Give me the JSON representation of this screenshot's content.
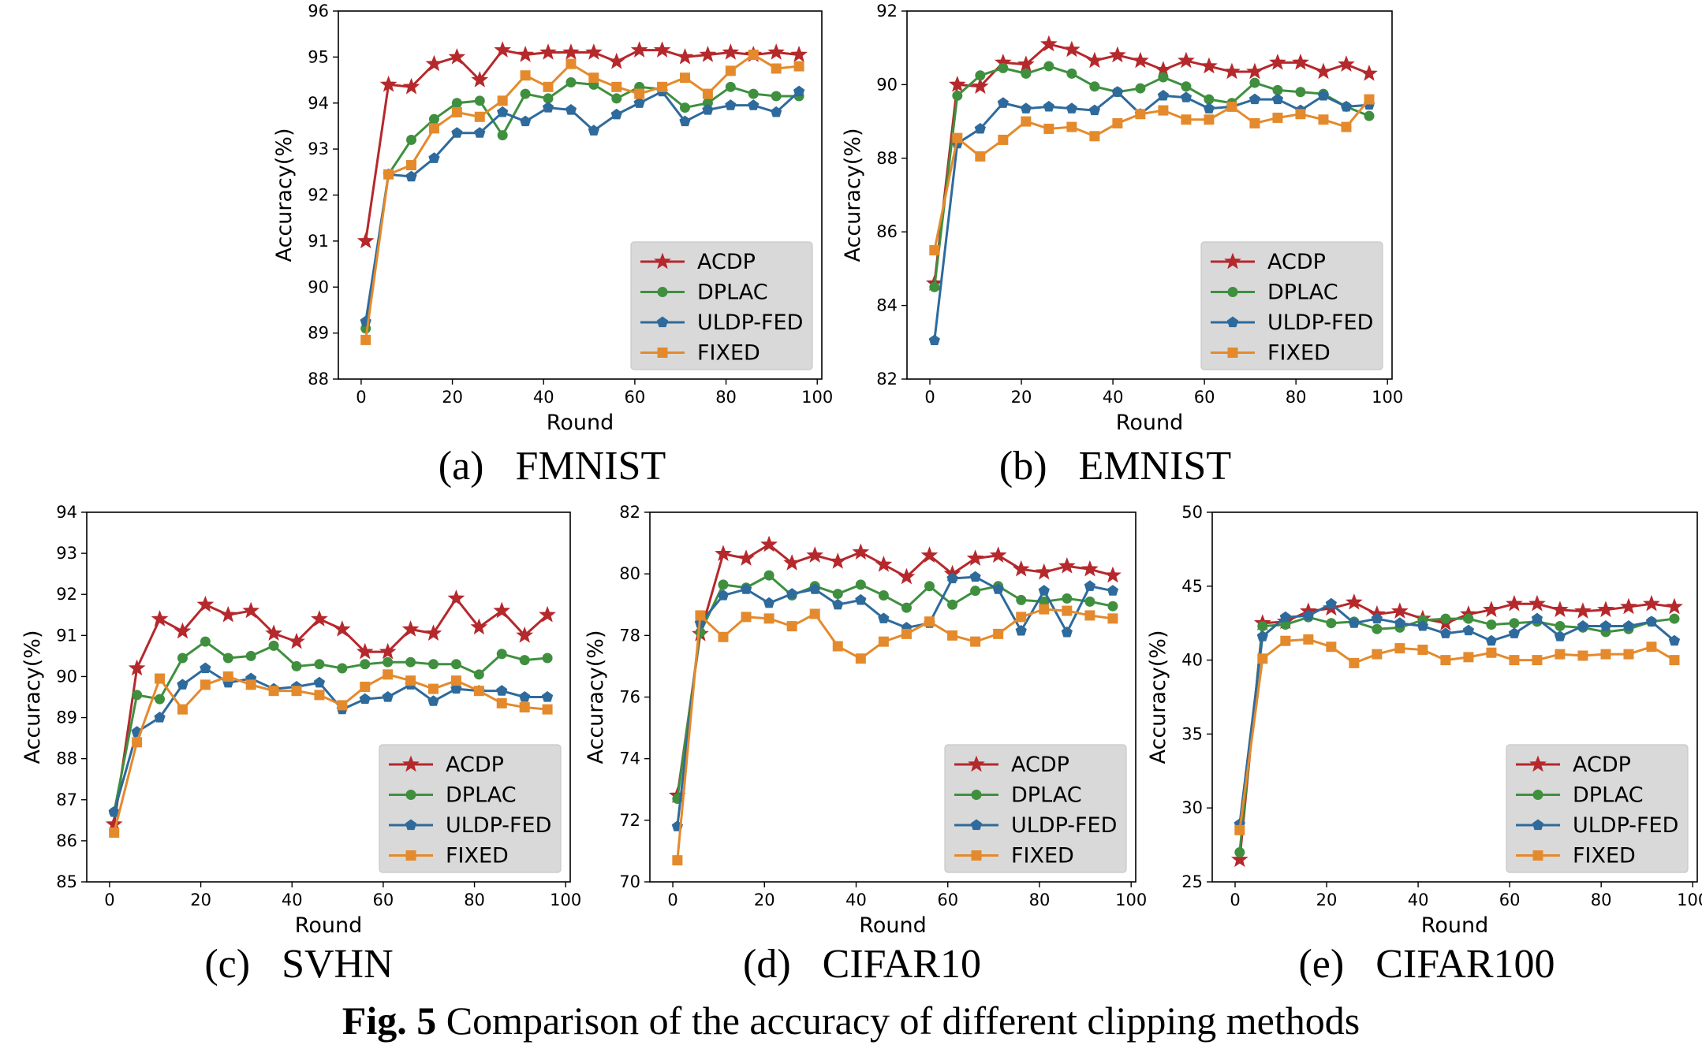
{
  "figure_caption": {
    "label": "Fig. 5",
    "text": " Comparison of the accuracy of different clipping methods"
  },
  "colors": {
    "ACDP": "#b5282c",
    "DPLAC": "#3f8f3f",
    "ULDP-FED": "#2e6a9c",
    "FIXED": "#e48a2c"
  },
  "markers": {
    "ACDP": "star",
    "DPLAC": "circle",
    "ULDP-FED": "pentagon",
    "FIXED": "square"
  },
  "chart_data": [
    {
      "type": "line",
      "panel_label": "(a)",
      "dataset": "FMNIST",
      "xlabel": "Round",
      "ylabel": "Accuracy(%)",
      "xlim": [
        -5,
        101
      ],
      "ylim": [
        88,
        96
      ],
      "xticks": [
        0,
        20,
        40,
        60,
        80,
        100
      ],
      "yticks": [
        88,
        89,
        90,
        91,
        92,
        93,
        94,
        95,
        96
      ],
      "legend": [
        "ACDP",
        "DPLAC",
        "ULDP-FED",
        "FIXED"
      ],
      "legend_position": "lower-right",
      "grid": false,
      "x": [
        1,
        6,
        11,
        16,
        21,
        26,
        31,
        36,
        41,
        46,
        51,
        56,
        61,
        66,
        71,
        76,
        81,
        86,
        91,
        96
      ],
      "series": [
        {
          "name": "ACDP",
          "values": [
            91.0,
            94.4,
            94.35,
            94.85,
            95.0,
            94.5,
            95.15,
            95.05,
            95.1,
            95.1,
            95.1,
            94.9,
            95.15,
            95.15,
            95.0,
            95.05,
            95.1,
            95.05,
            95.1,
            95.05
          ]
        },
        {
          "name": "DPLAC",
          "values": [
            89.1,
            92.45,
            93.2,
            93.65,
            94.0,
            94.05,
            93.3,
            94.2,
            94.1,
            94.45,
            94.4,
            94.1,
            94.35,
            94.3,
            93.9,
            94.0,
            94.35,
            94.2,
            94.15,
            94.15
          ]
        },
        {
          "name": "ULDP-FED",
          "values": [
            89.25,
            92.45,
            92.4,
            92.8,
            93.35,
            93.35,
            93.8,
            93.6,
            93.9,
            93.85,
            93.4,
            93.75,
            94.0,
            94.25,
            93.6,
            93.85,
            93.95,
            93.95,
            93.8,
            94.25
          ]
        },
        {
          "name": "FIXED",
          "values": [
            88.85,
            92.45,
            92.65,
            93.45,
            93.8,
            93.7,
            94.05,
            94.6,
            94.35,
            94.85,
            94.55,
            94.35,
            94.2,
            94.35,
            94.55,
            94.2,
            94.7,
            95.05,
            94.75,
            94.8
          ]
        }
      ]
    },
    {
      "type": "line",
      "panel_label": "(b)",
      "dataset": "EMNIST",
      "xlabel": "Round",
      "ylabel": "Accuracy(%)",
      "xlim": [
        -5,
        101
      ],
      "ylim": [
        82,
        92
      ],
      "xticks": [
        0,
        20,
        40,
        60,
        80,
        100
      ],
      "yticks": [
        82,
        84,
        86,
        88,
        90,
        92
      ],
      "legend": [
        "ACDP",
        "DPLAC",
        "ULDP-FED",
        "FIXED"
      ],
      "legend_position": "lower-right",
      "grid": false,
      "x": [
        1,
        6,
        11,
        16,
        21,
        26,
        31,
        36,
        41,
        46,
        51,
        56,
        61,
        66,
        71,
        76,
        81,
        86,
        91,
        96
      ],
      "series": [
        {
          "name": "ACDP",
          "values": [
            84.6,
            90.0,
            89.95,
            90.6,
            90.55,
            91.1,
            90.95,
            90.65,
            90.8,
            90.65,
            90.4,
            90.65,
            90.5,
            90.35,
            90.35,
            90.6,
            90.6,
            90.35,
            90.55,
            90.3
          ]
        },
        {
          "name": "DPLAC",
          "values": [
            84.5,
            89.7,
            90.25,
            90.45,
            90.3,
            90.5,
            90.3,
            89.95,
            89.8,
            89.9,
            90.2,
            89.95,
            89.6,
            89.5,
            90.05,
            89.85,
            89.8,
            89.75,
            89.4,
            89.15
          ]
        },
        {
          "name": "ULDP-FED",
          "values": [
            83.05,
            88.4,
            88.8,
            89.5,
            89.35,
            89.4,
            89.35,
            89.3,
            89.8,
            89.2,
            89.7,
            89.65,
            89.35,
            89.4,
            89.6,
            89.6,
            89.3,
            89.7,
            89.4,
            89.45
          ]
        },
        {
          "name": "FIXED",
          "values": [
            85.5,
            88.55,
            88.05,
            88.5,
            89.0,
            88.8,
            88.85,
            88.6,
            88.95,
            89.2,
            89.3,
            89.05,
            89.05,
            89.4,
            88.95,
            89.1,
            89.2,
            89.05,
            88.85,
            89.6
          ]
        }
      ]
    },
    {
      "type": "line",
      "panel_label": "(c)",
      "dataset": "SVHN",
      "xlabel": "Round",
      "ylabel": "Accuracy(%)",
      "xlim": [
        -5,
        101
      ],
      "ylim": [
        85,
        94
      ],
      "xticks": [
        0,
        20,
        40,
        60,
        80,
        100
      ],
      "yticks": [
        85,
        86,
        87,
        88,
        89,
        90,
        91,
        92,
        93,
        94
      ],
      "legend": [
        "ACDP",
        "DPLAC",
        "ULDP-FED",
        "FIXED"
      ],
      "legend_position": "lower-right",
      "grid": false,
      "x": [
        1,
        6,
        11,
        16,
        21,
        26,
        31,
        36,
        41,
        46,
        51,
        56,
        61,
        66,
        71,
        76,
        81,
        86,
        91,
        96
      ],
      "series": [
        {
          "name": "ACDP",
          "values": [
            86.4,
            90.2,
            91.4,
            91.1,
            91.75,
            91.5,
            91.6,
            91.05,
            90.85,
            91.4,
            91.15,
            90.6,
            90.6,
            91.15,
            91.05,
            91.9,
            91.2,
            91.6,
            91.0,
            91.5
          ]
        },
        {
          "name": "DPLAC",
          "values": [
            86.7,
            89.55,
            89.45,
            90.45,
            90.85,
            90.45,
            90.5,
            90.75,
            90.25,
            90.3,
            90.2,
            90.3,
            90.35,
            90.35,
            90.3,
            90.3,
            90.05,
            90.55,
            90.4,
            90.45
          ]
        },
        {
          "name": "ULDP-FED",
          "values": [
            86.7,
            88.65,
            89.0,
            89.8,
            90.2,
            89.85,
            89.95,
            89.7,
            89.75,
            89.85,
            89.2,
            89.45,
            89.5,
            89.8,
            89.4,
            89.7,
            89.65,
            89.65,
            89.5,
            89.5
          ]
        },
        {
          "name": "FIXED",
          "values": [
            86.2,
            88.4,
            89.95,
            89.2,
            89.8,
            90.0,
            89.8,
            89.65,
            89.65,
            89.55,
            89.3,
            89.75,
            90.05,
            89.9,
            89.7,
            89.9,
            89.65,
            89.35,
            89.25,
            89.2
          ]
        }
      ]
    },
    {
      "type": "line",
      "panel_label": "(d)",
      "dataset": "CIFAR10",
      "xlabel": "Round",
      "ylabel": "Accuracy(%)",
      "xlim": [
        -5,
        101
      ],
      "ylim": [
        70,
        82
      ],
      "xticks": [
        0,
        20,
        40,
        60,
        80,
        100
      ],
      "yticks": [
        70,
        72,
        74,
        76,
        78,
        80,
        82
      ],
      "legend": [
        "ACDP",
        "DPLAC",
        "ULDP-FED",
        "FIXED"
      ],
      "legend_position": "lower-right",
      "grid": false,
      "x": [
        1,
        6,
        11,
        16,
        21,
        26,
        31,
        36,
        41,
        46,
        51,
        56,
        61,
        66,
        71,
        76,
        81,
        86,
        91,
        96
      ],
      "series": [
        {
          "name": "ACDP",
          "values": [
            72.8,
            78.05,
            80.65,
            80.5,
            80.95,
            80.35,
            80.6,
            80.4,
            80.7,
            80.3,
            79.9,
            80.6,
            80.0,
            80.5,
            80.6,
            80.15,
            80.05,
            80.25,
            80.15,
            79.95
          ]
        },
        {
          "name": "DPLAC",
          "values": [
            72.7,
            78.1,
            79.65,
            79.55,
            79.95,
            79.3,
            79.6,
            79.35,
            79.65,
            79.3,
            78.9,
            79.6,
            79.0,
            79.45,
            79.6,
            79.15,
            79.1,
            79.2,
            79.1,
            78.95
          ]
        },
        {
          "name": "ULDP-FED",
          "values": [
            71.8,
            78.4,
            79.3,
            79.5,
            79.05,
            79.35,
            79.5,
            79.0,
            79.15,
            78.55,
            78.25,
            78.4,
            79.85,
            79.9,
            79.5,
            78.15,
            79.45,
            78.1,
            79.6,
            79.45
          ]
        },
        {
          "name": "FIXED",
          "values": [
            70.7,
            78.65,
            77.95,
            78.6,
            78.55,
            78.3,
            78.7,
            77.65,
            77.25,
            77.8,
            78.05,
            78.45,
            78.0,
            77.8,
            78.05,
            78.6,
            78.85,
            78.8,
            78.65,
            78.55
          ]
        }
      ]
    },
    {
      "type": "line",
      "panel_label": "(e)",
      "dataset": "CIFAR100",
      "xlabel": "Round",
      "ylabel": "Accuracy(%)",
      "xlim": [
        -5,
        101
      ],
      "ylim": [
        25,
        50
      ],
      "xticks": [
        0,
        20,
        40,
        60,
        80,
        100
      ],
      "yticks": [
        25,
        30,
        35,
        40,
        45,
        50
      ],
      "legend": [
        "ACDP",
        "DPLAC",
        "ULDP-FED",
        "FIXED"
      ],
      "legend_position": "lower-right",
      "grid": false,
      "x": [
        1,
        6,
        11,
        16,
        21,
        26,
        31,
        36,
        41,
        46,
        51,
        56,
        61,
        66,
        71,
        76,
        81,
        86,
        91,
        96
      ],
      "series": [
        {
          "name": "ACDP",
          "values": [
            26.5,
            42.5,
            42.6,
            43.3,
            43.5,
            43.9,
            43.1,
            43.3,
            42.8,
            42.5,
            43.1,
            43.4,
            43.8,
            43.8,
            43.4,
            43.3,
            43.4,
            43.6,
            43.8,
            43.6
          ]
        },
        {
          "name": "DPLAC",
          "values": [
            27.0,
            42.3,
            42.4,
            42.9,
            42.5,
            42.6,
            42.1,
            42.2,
            42.7,
            42.8,
            42.8,
            42.4,
            42.5,
            42.6,
            42.3,
            42.2,
            41.9,
            42.1,
            42.6,
            42.8
          ]
        },
        {
          "name": "ULDP-FED",
          "values": [
            28.9,
            41.6,
            42.9,
            43.0,
            43.8,
            42.5,
            42.8,
            42.5,
            42.3,
            41.8,
            42.0,
            41.3,
            41.8,
            42.8,
            41.6,
            42.3,
            42.3,
            42.3,
            42.6,
            41.3
          ]
        },
        {
          "name": "FIXED",
          "values": [
            28.5,
            40.1,
            41.3,
            41.4,
            40.9,
            39.8,
            40.4,
            40.8,
            40.7,
            40.0,
            40.2,
            40.5,
            40.0,
            40.0,
            40.4,
            40.3,
            40.4,
            40.4,
            40.9,
            40.0
          ]
        }
      ]
    }
  ]
}
